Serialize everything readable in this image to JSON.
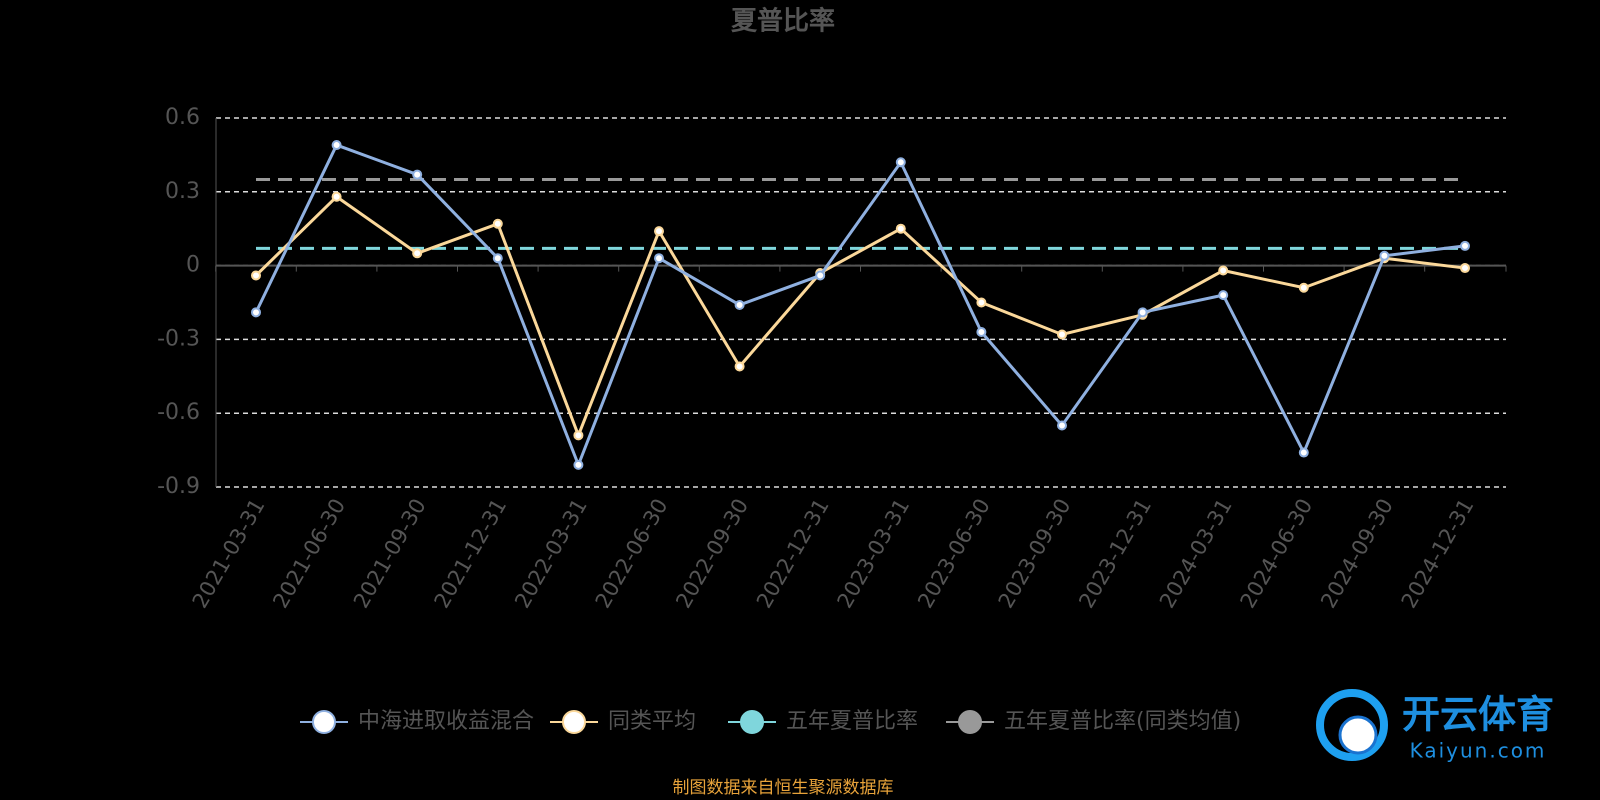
{
  "chart_data": {
    "type": "line",
    "title": "夏普比率",
    "categories": [
      "2021-03-31",
      "2021-06-30",
      "2021-09-30",
      "2021-12-31",
      "2022-03-31",
      "2022-06-30",
      "2022-09-30",
      "2022-12-31",
      "2023-03-31",
      "2023-06-30",
      "2023-09-30",
      "2023-12-31",
      "2024-03-31",
      "2024-06-30",
      "2024-09-30",
      "2024-12-31"
    ],
    "series": [
      {
        "name": "中海进取收益混合",
        "color": "#8fb0e0",
        "values": [
          -0.19,
          0.49,
          0.37,
          0.03,
          -0.81,
          0.03,
          -0.16,
          -0.04,
          0.42,
          -0.27,
          -0.65,
          -0.19,
          -0.12,
          -0.76,
          0.04,
          0.08
        ]
      },
      {
        "name": "同类平均",
        "color": "#fbd89a",
        "values": [
          -0.04,
          0.28,
          0.05,
          0.17,
          -0.69,
          0.14,
          -0.41,
          -0.03,
          0.15,
          -0.15,
          -0.28,
          -0.2,
          -0.02,
          -0.09,
          0.03,
          -0.01
        ]
      },
      {
        "name": "五年夏普比率",
        "color": "#7fd6dc",
        "value": 0.07,
        "dashed": true
      },
      {
        "name": "五年夏普比率(同类均值)",
        "color": "#999999",
        "value": 0.35,
        "dashed": true
      }
    ],
    "ylim": [
      -0.9,
      0.6
    ],
    "yticks": [
      -0.9,
      -0.6,
      -0.3,
      0,
      0.3,
      0.6
    ],
    "grid": true,
    "legend": "bottom",
    "source": "制图数据来自恒生聚源数据库",
    "watermark": {
      "brand": "开云体育",
      "site": "Kaiyun.com"
    }
  }
}
